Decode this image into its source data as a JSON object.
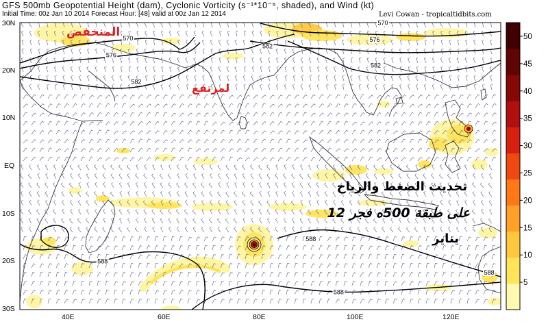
{
  "header": {
    "title": "GFS 500mb Geopotential Height (dam), Cyclonic Vorticity (s⁻¹*10⁻⁵, shaded), and Wind (kt)",
    "subtitle": "Initial Time: 00z Jan 10 2014 Forecast Hour: [48] valid at 00z Jan 12 2014",
    "credit": "Levi Cowan - tropicaltidbits.com"
  },
  "axes": {
    "lat_labels": [
      "30N",
      "20N",
      "10N",
      "EQ",
      "10S",
      "20S",
      "30S"
    ],
    "lon_labels": [
      "40E",
      "60E",
      "80E",
      "100E",
      "120E"
    ]
  },
  "colorbar": {
    "ticks": [
      "50",
      "45",
      "40",
      "35",
      "30",
      "25",
      "20",
      "15",
      "10",
      "5"
    ],
    "colors": [
      "#fff8b0",
      "#ffe45a",
      "#ffc83c",
      "#ffa028",
      "#ff7818",
      "#f04810",
      "#d82010",
      "#b01010",
      "#880808",
      "#600404",
      "#400000"
    ]
  },
  "contours": {
    "labels": [
      {
        "text": "570",
        "lon": 52.5,
        "lat": 26.3
      },
      {
        "text": "576",
        "lon": 49.0,
        "lat": 22.8
      },
      {
        "text": "582",
        "lon": 54.2,
        "lat": 17.2
      },
      {
        "text": "582",
        "lon": 81.5,
        "lat": 24.6
      },
      {
        "text": "570",
        "lon": 105.5,
        "lat": 29.5
      },
      {
        "text": "576",
        "lon": 103.8,
        "lat": 26.0
      },
      {
        "text": "582",
        "lon": 104.0,
        "lat": 20.6
      },
      {
        "text": "588",
        "lon": 47.2,
        "lat": -20.3
      },
      {
        "text": "588",
        "lon": 90.5,
        "lat": -15.7
      },
      {
        "text": "588",
        "lon": 96.3,
        "lat": -26.8
      },
      {
        "text": "588",
        "lon": 127.6,
        "lat": -22.7
      }
    ]
  },
  "annotations": {
    "red_left": "المنخفض",
    "red_mid": "لمرتفع",
    "black_line1": "تحديث الضغط والرياح",
    "black_line2": "على طبقة 500ه فجر 12",
    "black_line3": "يناير"
  },
  "colors": {
    "coast": "#333333",
    "contour": "#000000",
    "barb": "#6a6a9a",
    "annotation_red": "#e02020"
  }
}
